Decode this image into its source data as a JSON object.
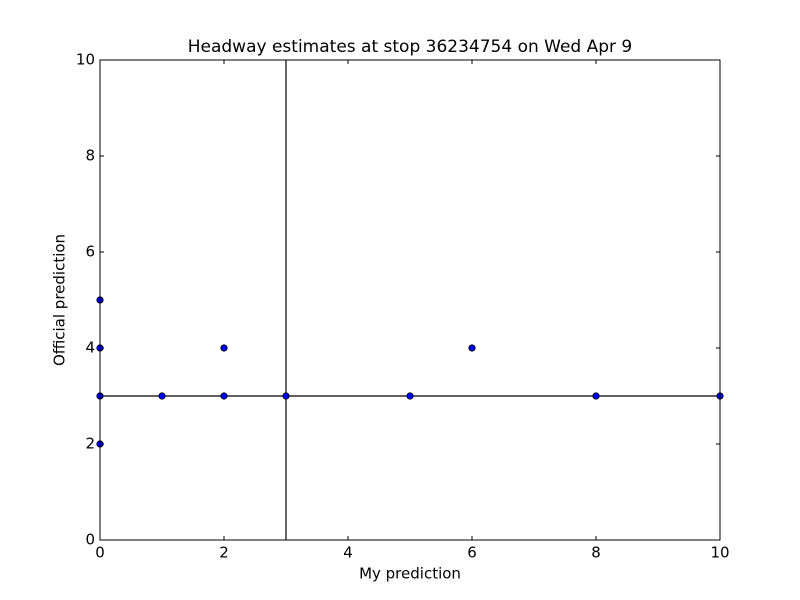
{
  "chart_data": {
    "type": "scatter",
    "title": "Headway estimates at stop 36234754 on Wed Apr 9",
    "x_label": "My prediction",
    "y_label": "Official prediction",
    "series": [
      {
        "color": "#0000ff",
        "x": [
          0,
          0,
          0,
          0,
          1,
          2,
          2,
          3,
          5,
          6,
          8,
          10
        ],
        "values": [
          5,
          4,
          3,
          2,
          3,
          4,
          3,
          3,
          3,
          4,
          3,
          3
        ]
      }
    ],
    "vline": 3,
    "hline": 3,
    "xlim": [
      0,
      10
    ],
    "ylim": [
      0,
      10
    ],
    "xticks": [
      0,
      2,
      4,
      6,
      8,
      10
    ],
    "yticks": [
      0,
      2,
      4,
      6,
      8,
      10
    ]
  }
}
